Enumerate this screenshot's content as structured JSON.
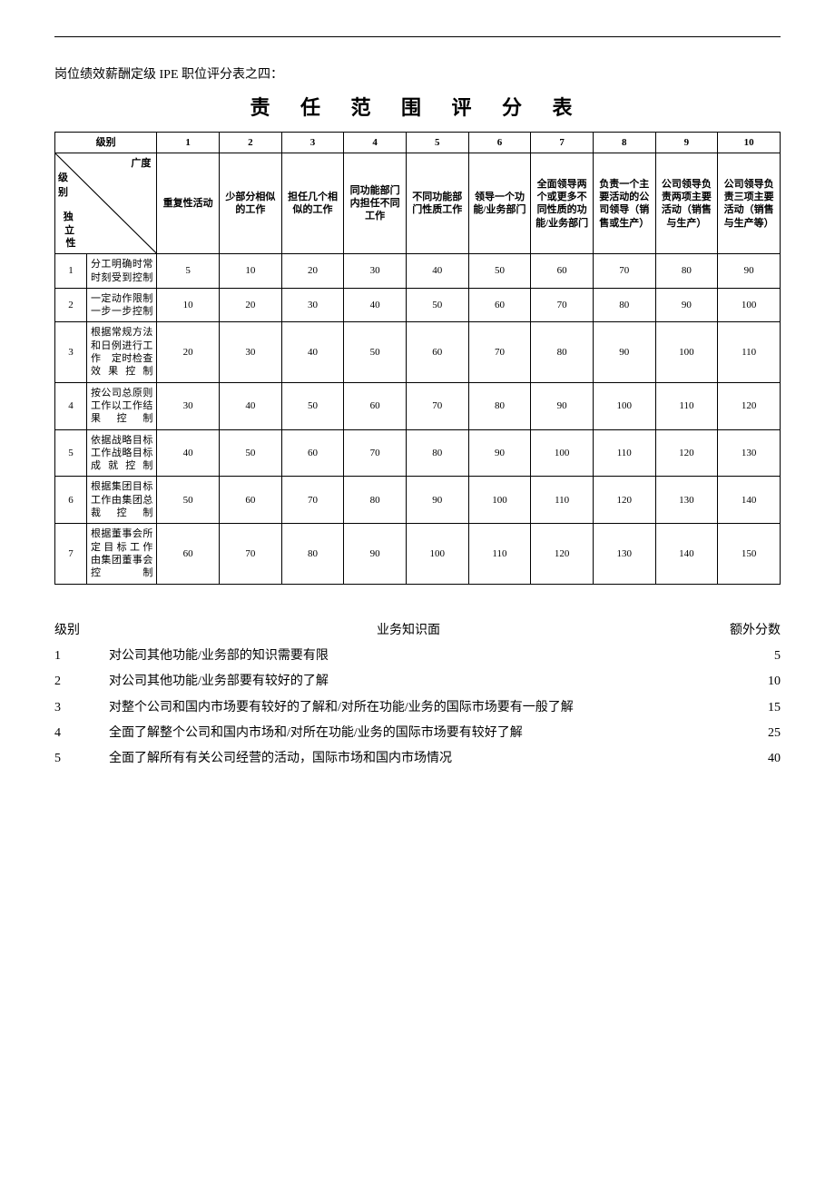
{
  "intro": "岗位绩效薪酬定级 IPE 职位评分表之四：",
  "title": "责 任 范 围 评 分 表",
  "colors": {
    "text": "#000000",
    "background": "#ffffff",
    "border": "#000000"
  },
  "fonts": {
    "body_family": "SimSun",
    "intro_size": 14,
    "title_size": 22,
    "table_size": 11,
    "knowledge_size": 14
  },
  "main_table": {
    "header_row1_label": "级别",
    "header_cols": [
      "1",
      "2",
      "3",
      "4",
      "5",
      "6",
      "7",
      "8",
      "9",
      "10"
    ],
    "diag": {
      "top": "广度",
      "left_vertical": "级别",
      "bot": "独立性"
    },
    "col_descs": [
      "重复性活动",
      "少部分相似的工作",
      "担任几个相似的工作",
      "同功能部门内担任不同工作",
      "不同功能部门性质工作",
      "领导一个功能/业务部门",
      "全面领导两个或更多不同性质的功能/业务部门",
      "负责一个主要活动的公司领导（销售或生产）",
      "公司领导负责两项主要活动（销售与生产）",
      "公司领导负责三项主要活动（销售与生产等）"
    ],
    "row_labels_num": [
      "1",
      "2",
      "3",
      "4",
      "5",
      "6",
      "7"
    ],
    "row_labels_desc": [
      "分工明确时常时刻受到控制",
      "一定动作限制　一步一步控制",
      "根据常规方法和日例进行工作　定时检查效果控制",
      "按公司总原则工作以工作结果控制",
      "依据战略目标工作战略目标成就控制",
      "根据集团目标工作由集团总裁控制",
      "根据董事会所定目标工作 由集团董事会控制"
    ],
    "rows": [
      [
        5,
        10,
        20,
        30,
        40,
        50,
        60,
        70,
        80,
        90
      ],
      [
        10,
        20,
        30,
        40,
        50,
        60,
        70,
        80,
        90,
        100
      ],
      [
        20,
        30,
        40,
        50,
        60,
        70,
        80,
        90,
        100,
        110
      ],
      [
        30,
        40,
        50,
        60,
        70,
        80,
        90,
        100,
        110,
        120
      ],
      [
        40,
        50,
        60,
        70,
        80,
        90,
        100,
        110,
        120,
        130
      ],
      [
        50,
        60,
        70,
        80,
        90,
        100,
        110,
        120,
        130,
        140
      ],
      [
        60,
        70,
        80,
        90,
        100,
        110,
        120,
        130,
        140,
        150
      ]
    ]
  },
  "knowledge": {
    "headers": {
      "level": "级别",
      "desc": "业务知识面",
      "score": "额外分数"
    },
    "rows": [
      {
        "level": "1",
        "desc": "对公司其他功能/业务部的知识需要有限",
        "score": "5"
      },
      {
        "level": "2",
        "desc": "对公司其他功能/业务部要有较好的了解",
        "score": "10"
      },
      {
        "level": "3",
        "desc": "对整个公司和国内市场要有较好的了解和/对所在功能/业务的国际市场要有一般了解",
        "score": "15"
      },
      {
        "level": "4",
        "desc": "全面了解整个公司和国内市场和/对所在功能/业务的国际市场要有较好了解",
        "score": "25"
      },
      {
        "level": "5",
        "desc": "全面了解所有有关公司经营的活动，国际市场和国内市场情况",
        "score": "40"
      }
    ]
  }
}
